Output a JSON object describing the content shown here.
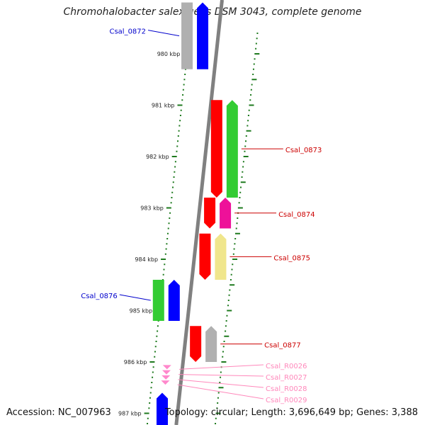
{
  "title": "Chromohalobacter salexigens DSM 3043, complete genome",
  "accession": "Accession: NC_007963",
  "topology": "Topology: circular; Length: 3,696,649 bp; Genes: 3,388",
  "colors": {
    "backbone": "#808080",
    "tick": "#1e7a1e",
    "cds_forward": "#0000ff",
    "cds_reverse": "#ff0000",
    "cog_green": "#33cc33",
    "cog_magenta": "#ee1199",
    "cog_yellow": "#f0e68c",
    "cog_gray": "#b0b0b0",
    "rna": "#ff88cc",
    "label_forward": "#0000cc",
    "label_reverse": "#cc0000",
    "label_rna": "#ff88bb"
  },
  "scale": {
    "ticks_kbp": [
      980,
      981,
      982,
      983,
      984,
      985,
      986,
      987
    ],
    "tick_labels": [
      "980 kbp",
      "981 kbp",
      "982 kbp",
      "983 kbp",
      "984 kbp",
      "985 kbp",
      "986 kbp",
      "987 kbp"
    ]
  },
  "genes": [
    {
      "name": "Csal_0872",
      "strand": "+",
      "start_kbp": 979.0,
      "end_kbp": 980.3,
      "cog": "gray"
    },
    {
      "name": "Csal_0873",
      "strand": "-",
      "start_kbp": 980.9,
      "end_kbp": 982.8,
      "cog": "green"
    },
    {
      "name": "Csal_0874",
      "strand": "-",
      "start_kbp": 982.8,
      "end_kbp": 983.4,
      "cog": "magenta"
    },
    {
      "name": "Csal_0875",
      "strand": "-",
      "start_kbp": 983.5,
      "end_kbp": 984.4,
      "cog": "yellow"
    },
    {
      "name": "Csal_0876",
      "strand": "+",
      "start_kbp": 984.4,
      "end_kbp": 985.2,
      "cog": "green"
    },
    {
      "name": "Csal_0877",
      "strand": "-",
      "start_kbp": 985.3,
      "end_kbp": 986.0,
      "cog": "gray"
    },
    {
      "name": "Csal_R0026",
      "strand": "-",
      "start_kbp": 986.06,
      "end_kbp": 986.1,
      "cog": "rna"
    },
    {
      "name": "Csal_R0027",
      "strand": "-",
      "start_kbp": 986.16,
      "end_kbp": 986.2,
      "cog": "rna"
    },
    {
      "name": "Csal_R0028",
      "strand": "-",
      "start_kbp": 986.26,
      "end_kbp": 986.3,
      "cog": "rna"
    },
    {
      "name": "Csal_R0029",
      "strand": "-",
      "start_kbp": 986.36,
      "end_kbp": 986.4,
      "cog": "rna"
    },
    {
      "name": "",
      "strand": "+",
      "start_kbp": 986.6,
      "end_kbp": 987.3,
      "cog": "none"
    }
  ]
}
